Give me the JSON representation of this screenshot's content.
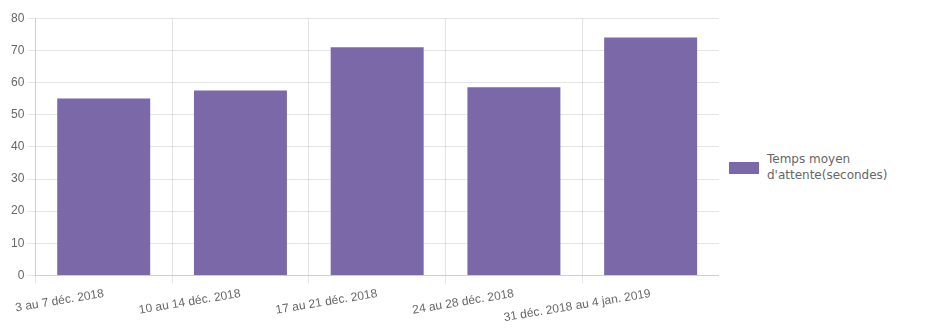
{
  "chart_data": {
    "type": "bar",
    "categories": [
      "3 au 7 déc. 2018",
      "10 au 14 déc. 2018",
      "17 au 21 déc. 2018",
      "24 au 28 déc. 2018",
      "31 déc. 2018 au 4 jan. 2019"
    ],
    "series": [
      {
        "name": "Temps moyen\nd'attente(secondes)",
        "color": "#7B68A8",
        "values": [
          55,
          57.5,
          71,
          58.5,
          74
        ]
      }
    ],
    "ylim": [
      0,
      80
    ],
    "yticks": [
      0,
      10,
      20,
      30,
      40,
      50,
      60,
      70,
      80
    ],
    "grid": true,
    "legend": "right"
  }
}
